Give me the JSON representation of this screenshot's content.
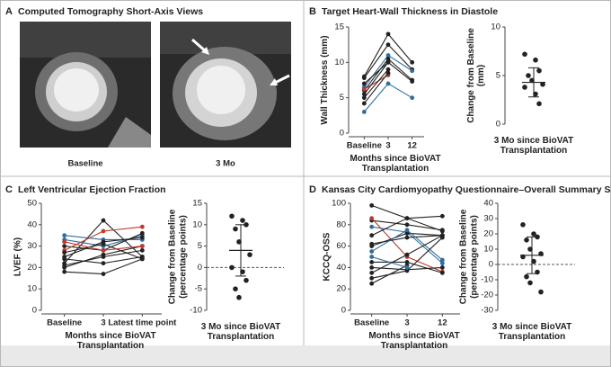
{
  "chart_data": [
    {
      "type": "image",
      "label": "A",
      "title": "Computed Tomography Short-Axis Views",
      "captions": [
        "Baseline",
        "3 Mo"
      ]
    },
    {
      "type": "line",
      "label": "B",
      "title": "Target Heart-Wall Thickness in Diastole",
      "categories": [
        "Baseline",
        "3",
        "12"
      ],
      "ylabel": "Wall Thickness (mm)",
      "xlabel": "Months since BioVAT Transplantation",
      "ylim": [
        0,
        15
      ],
      "yticks": [
        0,
        5,
        10,
        15
      ],
      "series": [
        {
          "color": "#222222",
          "values": [
            8,
            14,
            10
          ]
        },
        {
          "color": "#222222",
          "values": [
            7.8,
            12.5,
            9
          ]
        },
        {
          "color": "#2f6e9e",
          "values": [
            6.5,
            11,
            8.8
          ]
        },
        {
          "color": "#222222",
          "values": [
            6,
            10.5,
            7.5
          ]
        },
        {
          "color": "#c0392b",
          "values": [
            6.2,
            8.2,
            null
          ]
        },
        {
          "color": "#222222",
          "values": [
            5.5,
            10,
            7.3
          ]
        },
        {
          "color": "#222222",
          "values": [
            5,
            9,
            null
          ]
        },
        {
          "color": "#2f6e9e",
          "values": [
            3,
            7,
            5
          ]
        },
        {
          "color": "#222222",
          "values": [
            4.2,
            8.5,
            null
          ]
        },
        {
          "color": "#222222",
          "values": [
            7,
            10,
            null
          ]
        }
      ]
    },
    {
      "type": "dot",
      "ylabel": "Change from Baseline (mm)",
      "xlabel": "3 Mo since BioVAT Transplantation",
      "ylim": [
        0,
        10
      ],
      "yticks": [
        0,
        5,
        10
      ],
      "color": "#222222",
      "zero_line": false,
      "values": [
        7.2,
        6.6,
        5.5,
        5.0,
        4.5,
        4.1,
        3.8,
        3.1,
        2.1
      ],
      "mean": 4.3,
      "sd": 1.5
    },
    {
      "type": "line",
      "label": "C",
      "title": "Left Ventricular Ejection Fraction",
      "categories": [
        "Baseline",
        "3",
        "Latest time point"
      ],
      "ylabel": "LVEF (%)",
      "xlabel": "Months since BioVAT Transplantation",
      "ylim": [
        0,
        50
      ],
      "yticks": [
        0,
        10,
        20,
        30,
        40,
        50
      ],
      "series": [
        {
          "color": "#222222",
          "values": [
            22,
            42,
            25
          ]
        },
        {
          "color": "#2f6e9e",
          "values": [
            35,
            33,
            33
          ]
        },
        {
          "color": "#2f6e9e",
          "values": [
            33,
            30,
            35
          ]
        },
        {
          "color": "#222222",
          "values": [
            30,
            28,
            36
          ]
        },
        {
          "color": "#c0392b",
          "values": [
            28,
            37,
            39
          ]
        },
        {
          "color": "#222222",
          "values": [
            25,
            32,
            34
          ]
        },
        {
          "color": "#222222",
          "values": [
            24,
            22,
            25
          ]
        },
        {
          "color": "#222222",
          "values": [
            20,
            26,
            30
          ]
        },
        {
          "color": "#222222",
          "values": [
            18,
            17,
            24
          ]
        },
        {
          "color": "#222222",
          "values": [
            27,
            31,
            24
          ]
        },
        {
          "color": "#c0392b",
          "values": [
            32,
            28,
            30
          ]
        },
        {
          "color": "#222222",
          "values": [
            21,
            25,
            28
          ]
        }
      ]
    },
    {
      "type": "dot",
      "ylabel": "Change from Baseline (percentage points)",
      "xlabel": "3 Mo since BioVAT Transplantation",
      "ylim": [
        -10,
        15
      ],
      "yticks": [
        -10,
        -5,
        0,
        5,
        10,
        15
      ],
      "color": "#222222",
      "zero_line": true,
      "values": [
        12,
        11,
        10,
        9,
        6,
        3,
        0,
        -1,
        -3,
        -5,
        -7
      ],
      "mean": 4,
      "sd": 6
    },
    {
      "type": "line",
      "label": "D",
      "title": "Kansas City Cardiomyopathy Questionnaire–Overall Summary Score",
      "categories": [
        "Baseline",
        "3",
        "12"
      ],
      "ylabel": "KCCQ-OSS",
      "xlabel": "Months since BioVAT Transplantation",
      "ylim": [
        0,
        100
      ],
      "yticks": [
        0,
        20,
        40,
        60,
        80,
        100
      ],
      "series": [
        {
          "color": "#222222",
          "values": [
            98,
            86,
            88
          ]
        },
        {
          "color": "#222222",
          "values": [
            84,
            80,
            75
          ]
        },
        {
          "color": "#c0392b",
          "values": [
            86,
            50,
            36
          ]
        },
        {
          "color": "#2f6e9e",
          "values": [
            78,
            73,
            44
          ]
        },
        {
          "color": "#222222",
          "values": [
            70,
            86,
            74
          ]
        },
        {
          "color": "#222222",
          "values": [
            62,
            68,
            70
          ]
        },
        {
          "color": "#222222",
          "values": [
            60,
            72,
            70
          ]
        },
        {
          "color": "#2f6e9e",
          "values": [
            55,
            75,
            47
          ]
        },
        {
          "color": "#222222",
          "values": [
            45,
            45,
            35
          ]
        },
        {
          "color": "#222222",
          "values": [
            40,
            38,
            40
          ]
        },
        {
          "color": "#222222",
          "values": [
            35,
            52,
            70
          ]
        },
        {
          "color": "#222222",
          "values": [
            30,
            37,
            68
          ]
        },
        {
          "color": "#222222",
          "values": [
            25,
            42,
            null
          ]
        },
        {
          "color": "#2f6e9e",
          "values": [
            50,
            40,
            null
          ]
        }
      ]
    },
    {
      "type": "dot",
      "ylabel": "Change from Baseline (percentage points)",
      "xlabel": "3 Mo since BioVAT Transplantation",
      "ylim": [
        -30,
        40
      ],
      "yticks": [
        -30,
        -20,
        -10,
        0,
        10,
        20,
        30,
        40
      ],
      "color": "#222222",
      "zero_line": true,
      "values": [
        26,
        20,
        18,
        16,
        10,
        7,
        5,
        2,
        -5,
        -8,
        -12,
        -18
      ],
      "mean": 6,
      "sd": 12
    }
  ]
}
